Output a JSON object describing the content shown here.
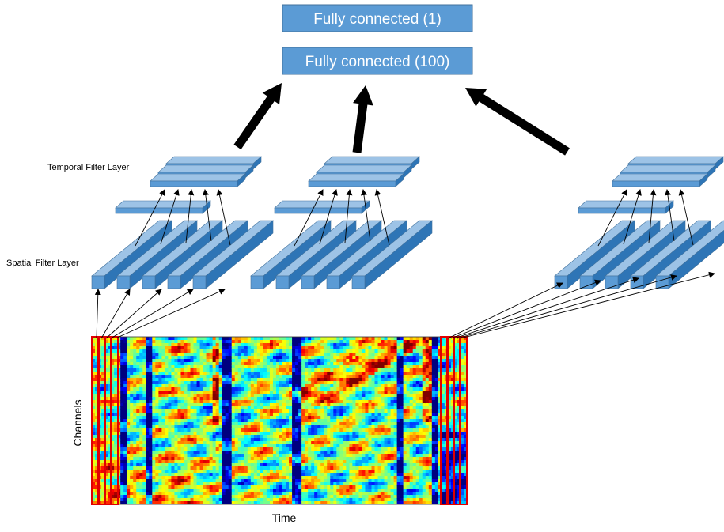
{
  "fc_layers": {
    "output": "Fully connected (1)",
    "hidden": "Fully connected (100)"
  },
  "labels": {
    "temporal": "Temporal Filter Layer",
    "spatial": "Spatial Filter Layer",
    "channels": "Channels",
    "time": "Time"
  },
  "colors": {
    "fc_box": "#5b9bd5",
    "fc_border": "#41719c",
    "bar_front": "#5b9bd5",
    "bar_top": "#9dc3e6",
    "bar_side": "#2e75b6",
    "highlight": "#e00000",
    "arrow": "#000000"
  },
  "column_count": 3,
  "spatial_bar_count": 5,
  "temporal_bar_count": 3,
  "heatmap": {
    "colormap": "jet",
    "highlight_strips": 4
  }
}
